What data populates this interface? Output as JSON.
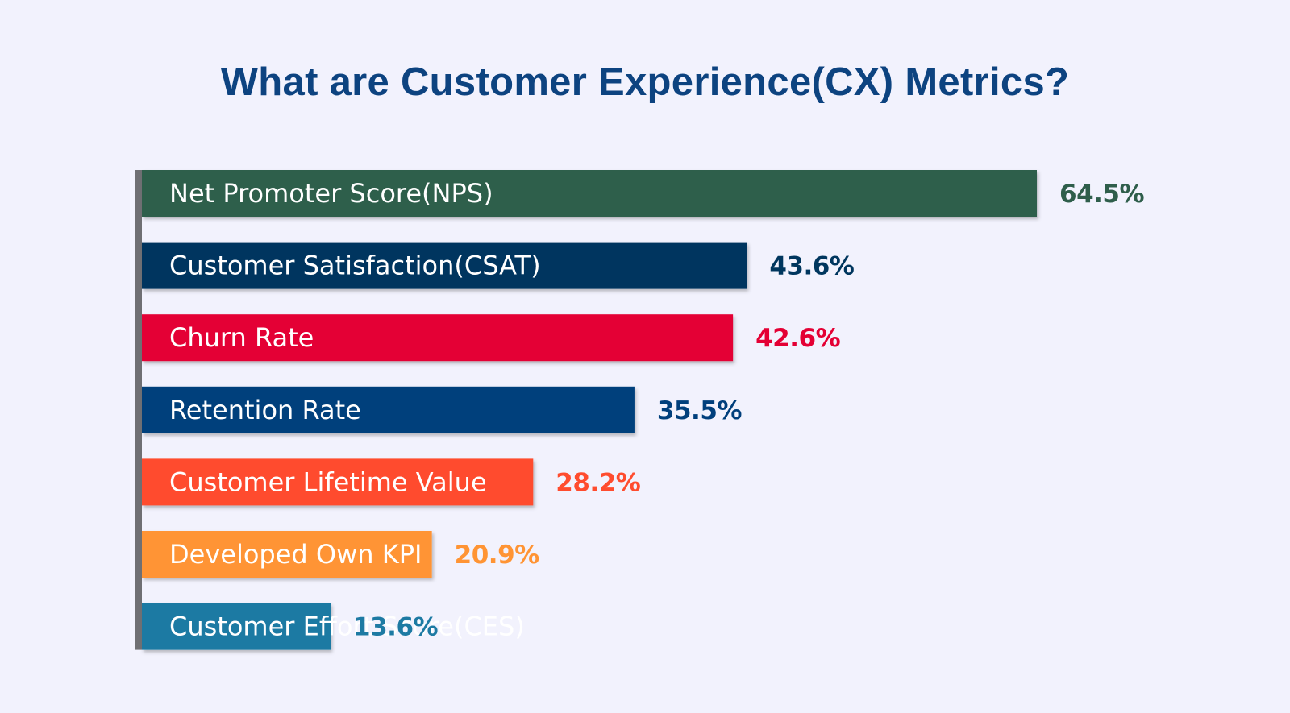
{
  "chart_data": {
    "type": "bar",
    "orientation": "horizontal",
    "title": "What are Customer Experience(CX) Metrics?",
    "categories": [
      "Net Promoter Score(NPS)",
      "Customer Satisfaction(CSAT)",
      "Churn Rate",
      "Retention Rate",
      "Customer Lifetime Value",
      "Developed Own KPI",
      "Customer Effort Score(CES)"
    ],
    "values": [
      64.5,
      43.6,
      42.6,
      35.5,
      28.2,
      20.9,
      13.6
    ],
    "value_labels": [
      "64.5%",
      "43.6%",
      "42.6%",
      "35.5%",
      "28.2%",
      "20.9%",
      "13.6%"
    ],
    "colors": [
      "#2f5e4b",
      "#00365e",
      "#e40034",
      "#003f7c",
      "#ff4c2e",
      "#ff9434",
      "#1d7aa3"
    ],
    "axis_color": "#6f6f73",
    "xlabel": "",
    "ylabel": "",
    "grid": false,
    "legend": "none"
  }
}
